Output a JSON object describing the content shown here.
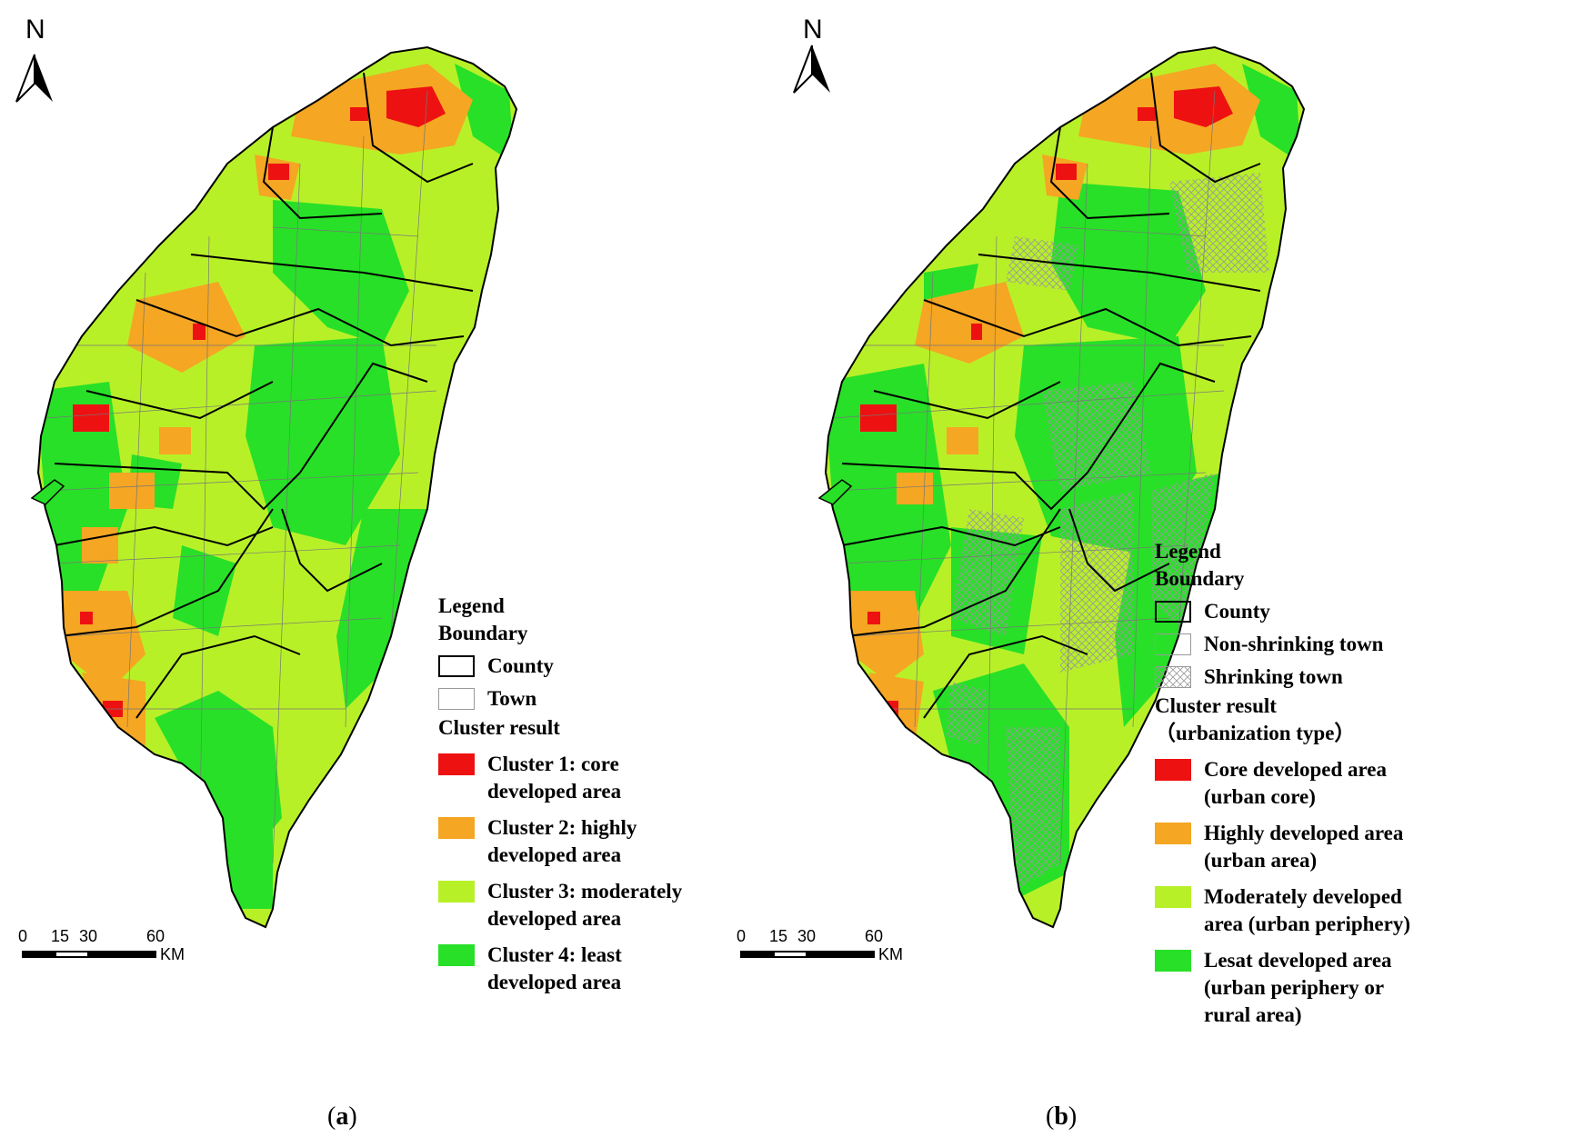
{
  "colors": {
    "core": "#ee1111",
    "high": "#f5a623",
    "moderate": "#b8f028",
    "least": "#28e028",
    "county_line": "#000000",
    "town_line": "#777777",
    "hatch": "#999999"
  },
  "north": "N",
  "scale": {
    "ticks": [
      "0",
      "15",
      "30",
      "60"
    ],
    "unit": "KM"
  },
  "panel_a": {
    "caption_pre": "(",
    "caption_bold": "a",
    "caption_post": ")",
    "legend": {
      "title": "Legend",
      "boundary": "Boundary",
      "county": "County",
      "town": "Town",
      "cluster_title": "Cluster result",
      "items": [
        {
          "color_key": "core",
          "label": "Cluster 1: core\ndeveloped area"
        },
        {
          "color_key": "high",
          "label": "Cluster 2: highly\ndeveloped area"
        },
        {
          "color_key": "moderate",
          "label": "Cluster 3: moderately\ndeveloped area"
        },
        {
          "color_key": "least",
          "label": "Cluster 4: least\ndeveloped area"
        }
      ]
    }
  },
  "panel_b": {
    "caption_pre": "(",
    "caption_bold": "b",
    "caption_post": ")",
    "legend": {
      "title": "Legend",
      "boundary": "Boundary",
      "county": "County",
      "non_shrinking": "Non-shrinking town",
      "shrinking": "Shrinking town",
      "cluster_title": "Cluster result\n（urbanization type）",
      "items": [
        {
          "color_key": "core",
          "label": "Core developed area\n(urban core)"
        },
        {
          "color_key": "high",
          "label": "Highly developed area\n(urban area)"
        },
        {
          "color_key": "moderate",
          "label": "Moderately developed\n area (urban periphery)"
        },
        {
          "color_key": "least",
          "label": "Lesat developed area\n(urban periphery or\nrural area)"
        }
      ]
    }
  }
}
